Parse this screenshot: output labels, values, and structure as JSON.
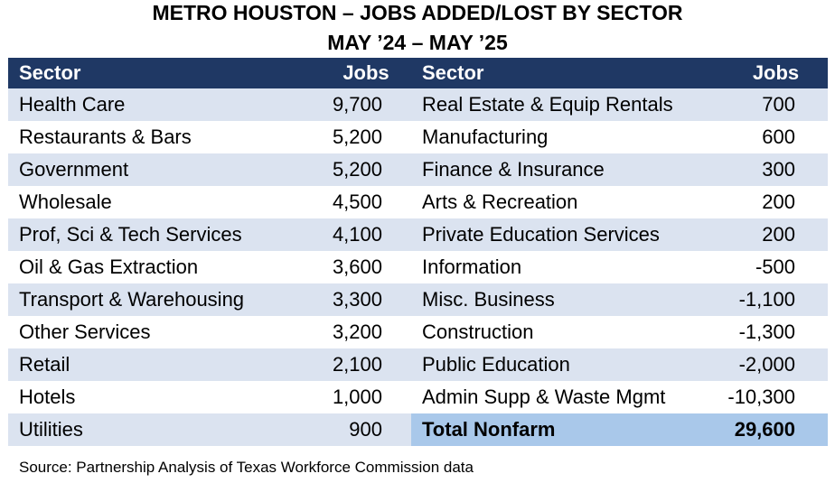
{
  "chart_data": {
    "type": "table",
    "title": "METRO HOUSTON – JOBS ADDED/LOST BY SECTOR",
    "subtitle": "MAY ’24 – MAY ’25",
    "columns": [
      "Sector",
      "Jobs",
      "Sector",
      "Jobs"
    ],
    "left": [
      {
        "sector": "Health Care",
        "jobs": "9,700"
      },
      {
        "sector": "Restaurants & Bars",
        "jobs": "5,200"
      },
      {
        "sector": "Government",
        "jobs": "5,200"
      },
      {
        "sector": "Wholesale",
        "jobs": "4,500"
      },
      {
        "sector": "Prof, Sci & Tech Services",
        "jobs": "4,100"
      },
      {
        "sector": "Oil & Gas Extraction",
        "jobs": "3,600"
      },
      {
        "sector": "Transport & Warehousing",
        "jobs": "3,300"
      },
      {
        "sector": "Other Services",
        "jobs": "3,200"
      },
      {
        "sector": "Retail",
        "jobs": "2,100"
      },
      {
        "sector": "Hotels",
        "jobs": "1,000"
      },
      {
        "sector": "Utilities",
        "jobs": "900"
      }
    ],
    "right": [
      {
        "sector": "Real Estate & Equip Rentals",
        "jobs": "700"
      },
      {
        "sector": "Manufacturing",
        "jobs": "600"
      },
      {
        "sector": "Finance & Insurance",
        "jobs": "300"
      },
      {
        "sector": "Arts & Recreation",
        "jobs": "200"
      },
      {
        "sector": "Private Education Services",
        "jobs": "200"
      },
      {
        "sector": "Information",
        "jobs": "-500"
      },
      {
        "sector": "Misc. Business",
        "jobs": "-1,100"
      },
      {
        "sector": "Construction",
        "jobs": "-1,300"
      },
      {
        "sector": "Public Education",
        "jobs": "-2,000"
      },
      {
        "sector": "Admin Supp & Waste Mgmt",
        "jobs": "-10,300"
      }
    ],
    "total": {
      "label": "Total Nonfarm",
      "jobs": "29,600"
    },
    "source": "Source: Partnership Analysis of Texas Workforce Commission data"
  },
  "colors": {
    "header_bg": "#1f3864",
    "band_bg": "#dbe3f0",
    "total_bg": "#a9c8ea"
  }
}
